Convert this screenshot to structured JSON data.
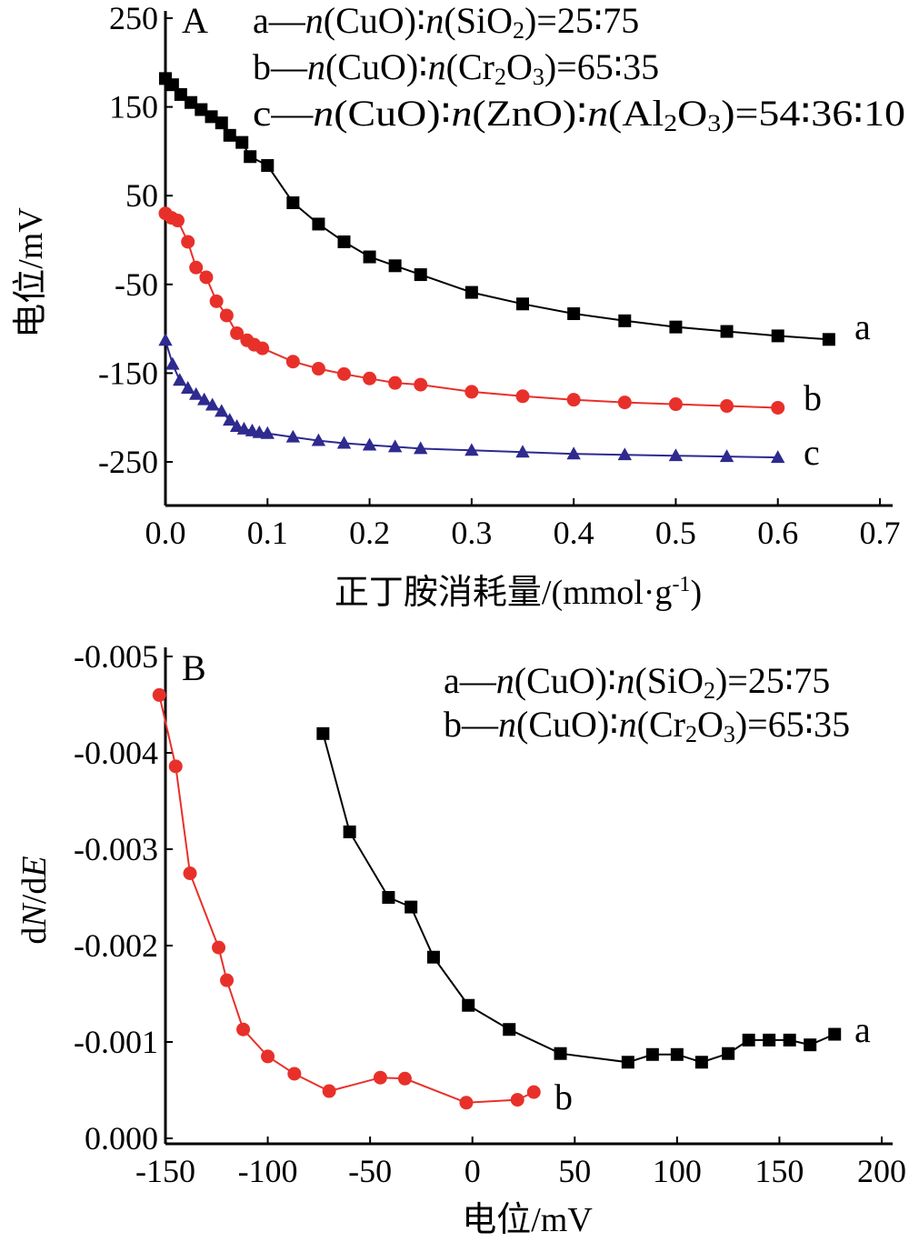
{
  "chart_data": [
    {
      "type": "line",
      "panel": "A",
      "ylabel": "电位/mV",
      "xlabel": "正丁胺消耗量/(mmol·g-1)",
      "xlabel_main": "正丁胺消耗量/(mmol·g",
      "xlabel_sup": "-1",
      "xlabel_tail": ")",
      "xlim": [
        0,
        0.7
      ],
      "ylim": [
        -300,
        250
      ],
      "xticks": [
        0.0,
        0.1,
        0.2,
        0.3,
        0.4,
        0.5,
        0.6,
        0.7
      ],
      "xtick_labels": [
        "0.0",
        "0.1",
        "0.2",
        "0.3",
        "0.4",
        "0.5",
        "0.6",
        "0.7"
      ],
      "yticks": [
        250,
        150,
        50,
        -50,
        -150,
        -250
      ],
      "ytick_labels": [
        "250",
        "150",
        "50",
        "-50",
        "-150",
        "-250"
      ],
      "legend": [
        "a—n(CuO):n(SiO2)=25:75",
        "b—n(CuO):n(Cr2O3)=65:35",
        "c—n(CuO):n(ZnO):n(Al2O3)=54:36:10"
      ],
      "series": [
        {
          "name": "a",
          "color": "#000000",
          "marker": "square",
          "x": [
            0.0,
            0.007,
            0.015,
            0.025,
            0.035,
            0.045,
            0.055,
            0.063,
            0.075,
            0.083,
            0.1,
            0.125,
            0.15,
            0.175,
            0.2,
            0.225,
            0.25,
            0.3,
            0.35,
            0.4,
            0.45,
            0.5,
            0.55,
            0.6,
            0.65
          ],
          "y": [
            182,
            175,
            164,
            155,
            147,
            139,
            132,
            118,
            110,
            94,
            84,
            42,
            18,
            -2,
            -19,
            -29,
            -39,
            -59,
            -72,
            -83,
            -91,
            -98,
            -103,
            -108,
            -112
          ]
        },
        {
          "name": "b",
          "color": "#e8302a",
          "marker": "circle",
          "x": [
            0.0,
            0.006,
            0.012,
            0.022,
            0.03,
            0.04,
            0.05,
            0.06,
            0.07,
            0.08,
            0.087,
            0.095,
            0.125,
            0.15,
            0.175,
            0.2,
            0.225,
            0.25,
            0.3,
            0.35,
            0.4,
            0.45,
            0.5,
            0.55,
            0.6
          ],
          "y": [
            30,
            25,
            22,
            -2,
            -31,
            -42,
            -69,
            -85,
            -105,
            -113,
            -118,
            -122,
            -137,
            -145,
            -151,
            -156,
            -161,
            -163,
            -171,
            -176,
            -180,
            -183,
            -185,
            -187,
            -189
          ]
        },
        {
          "name": "c",
          "color": "#2e2a8f",
          "marker": "triangle",
          "x": [
            0.0,
            0.007,
            0.014,
            0.022,
            0.03,
            0.038,
            0.046,
            0.055,
            0.063,
            0.07,
            0.077,
            0.085,
            0.092,
            0.1,
            0.125,
            0.15,
            0.175,
            0.2,
            0.225,
            0.25,
            0.3,
            0.35,
            0.4,
            0.45,
            0.5,
            0.55,
            0.6
          ],
          "y": [
            -113,
            -140,
            -158,
            -167,
            -174,
            -180,
            -186,
            -193,
            -203,
            -210,
            -213,
            -215,
            -217,
            -218,
            -222,
            -226,
            -229,
            -231,
            -233,
            -235,
            -237,
            -239,
            -241,
            -242,
            -243,
            -244,
            -245
          ]
        }
      ]
    },
    {
      "type": "line",
      "panel": "B",
      "ylabel": "dN/dE",
      "xlabel": "电位/mV",
      "xlim": [
        -155,
        200
      ],
      "ylim": [
        0.0,
        -0.005
      ],
      "xticks": [
        -150,
        -100,
        -50,
        0,
        50,
        100,
        150,
        200
      ],
      "xtick_labels": [
        "-150",
        "-100",
        "-50",
        "0",
        "50",
        "100",
        "150",
        "200"
      ],
      "yticks": [
        -0.005,
        -0.004,
        -0.003,
        -0.002,
        -0.001,
        0.0
      ],
      "ytick_labels": [
        "-0.005",
        "-0.004",
        "-0.003",
        "-0.002",
        "-0.001",
        "0.000"
      ],
      "legend": [
        "a—n(CuO):n(SiO2)=25:75",
        "b—n(CuO):n(Cr2O3)=65:35"
      ],
      "series": [
        {
          "name": "a",
          "color": "#000000",
          "marker": "square",
          "x": [
            -73,
            -60,
            -41,
            -30,
            -19,
            -2,
            18,
            43,
            76,
            88,
            100,
            112,
            125,
            135,
            145,
            155,
            165,
            177
          ],
          "y": [
            -0.0042,
            -0.00318,
            -0.0025,
            -0.0024,
            -0.00188,
            -0.00138,
            -0.00113,
            -0.00088,
            -0.00079,
            -0.00087,
            -0.00087,
            -0.00079,
            -0.00088,
            -0.00102,
            -0.00102,
            -0.00102,
            -0.00097,
            -0.00108
          ]
        },
        {
          "name": "b",
          "color": "#e8302a",
          "marker": "circle",
          "x": [
            -153,
            -145,
            -138,
            -124,
            -120,
            -112,
            -100,
            -87,
            -70,
            -45,
            -33,
            -3,
            22,
            30
          ],
          "y": [
            -0.0046,
            -0.00386,
            -0.00275,
            -0.00198,
            -0.00164,
            -0.00113,
            -0.00085,
            -0.00067,
            -0.00049,
            -0.00063,
            -0.00062,
            -0.00037,
            -0.0004,
            -0.00048
          ]
        }
      ]
    }
  ]
}
